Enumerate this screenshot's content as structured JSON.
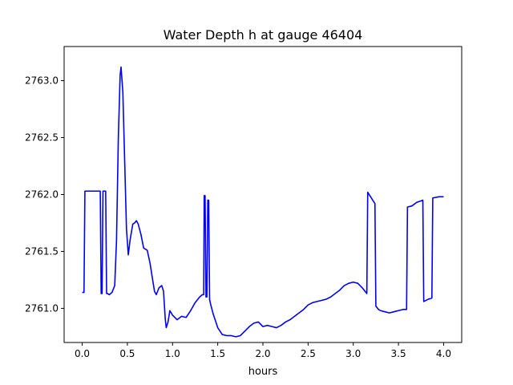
{
  "chart_data": {
    "type": "line",
    "title": "Water Depth h at gauge 46404",
    "xlabel": "hours",
    "ylabel": "",
    "xlim": [
      -0.2,
      4.2
    ],
    "ylim": [
      2760.7,
      2763.3
    ],
    "grid": false,
    "xticks": [
      {
        "value": 0.0,
        "label": "0.0"
      },
      {
        "value": 0.5,
        "label": "0.5"
      },
      {
        "value": 1.0,
        "label": "1.0"
      },
      {
        "value": 1.5,
        "label": "1.5"
      },
      {
        "value": 2.0,
        "label": "2.0"
      },
      {
        "value": 2.5,
        "label": "2.5"
      },
      {
        "value": 3.0,
        "label": "3.0"
      },
      {
        "value": 3.5,
        "label": "3.5"
      },
      {
        "value": 4.0,
        "label": "4.0"
      }
    ],
    "yticks": [
      {
        "value": 2761.0,
        "label": "2761.0"
      },
      {
        "value": 2761.5,
        "label": "2761.5"
      },
      {
        "value": 2762.0,
        "label": "2762.0"
      },
      {
        "value": 2762.5,
        "label": "2762.5"
      },
      {
        "value": 2763.0,
        "label": "2763.0"
      }
    ],
    "series": [
      {
        "color": "#0000ff",
        "x": [
          0.0,
          0.02,
          0.03,
          0.1,
          0.2,
          0.21,
          0.22,
          0.23,
          0.24,
          0.26,
          0.27,
          0.28,
          0.3,
          0.33,
          0.36,
          0.38,
          0.4,
          0.42,
          0.43,
          0.45,
          0.47,
          0.49,
          0.51,
          0.53,
          0.56,
          0.58,
          0.6,
          0.62,
          0.65,
          0.68,
          0.72,
          0.75,
          0.78,
          0.8,
          0.82,
          0.85,
          0.88,
          0.9,
          0.92,
          0.93,
          0.95,
          0.97,
          1.0,
          1.05,
          1.1,
          1.15,
          1.2,
          1.25,
          1.3,
          1.33,
          1.345,
          1.35,
          1.36,
          1.37,
          1.38,
          1.39,
          1.4,
          1.41,
          1.42,
          1.45,
          1.5,
          1.55,
          1.6,
          1.65,
          1.7,
          1.75,
          1.8,
          1.85,
          1.9,
          1.95,
          2.0,
          2.05,
          2.1,
          2.15,
          2.2,
          2.25,
          2.3,
          2.35,
          2.4,
          2.45,
          2.5,
          2.55,
          2.6,
          2.65,
          2.7,
          2.75,
          2.8,
          2.85,
          2.9,
          2.95,
          3.0,
          3.05,
          3.1,
          3.15,
          3.16,
          3.2,
          3.24,
          3.25,
          3.28,
          3.3,
          3.35,
          3.4,
          3.45,
          3.5,
          3.55,
          3.59,
          3.6,
          3.65,
          3.7,
          3.77,
          3.78,
          3.83,
          3.87,
          3.88,
          3.95,
          4.0
        ],
        "y": [
          2761.14,
          2761.14,
          2762.03,
          2762.03,
          2762.03,
          2761.13,
          2761.13,
          2762.03,
          2762.03,
          2762.03,
          2761.13,
          2761.13,
          2761.12,
          2761.14,
          2761.2,
          2761.6,
          2762.5,
          2763.05,
          2763.12,
          2762.9,
          2762.3,
          2761.7,
          2761.47,
          2761.6,
          2761.74,
          2761.75,
          2761.77,
          2761.74,
          2761.65,
          2761.53,
          2761.51,
          2761.4,
          2761.25,
          2761.15,
          2761.12,
          2761.18,
          2761.2,
          2761.15,
          2760.9,
          2760.83,
          2760.88,
          2760.98,
          2760.94,
          2760.9,
          2760.93,
          2760.92,
          2760.98,
          2761.05,
          2761.1,
          2761.12,
          2761.12,
          2761.99,
          2761.99,
          2761.1,
          2761.1,
          2761.95,
          2761.95,
          2761.08,
          2761.04,
          2760.95,
          2760.83,
          2760.77,
          2760.76,
          2760.76,
          2760.75,
          2760.76,
          2760.8,
          2760.84,
          2760.87,
          2760.88,
          2760.84,
          2760.85,
          2760.84,
          2760.83,
          2760.85,
          2760.88,
          2760.9,
          2760.93,
          2760.96,
          2760.99,
          2761.03,
          2761.05,
          2761.06,
          2761.07,
          2761.08,
          2761.1,
          2761.13,
          2761.16,
          2761.2,
          2761.22,
          2761.23,
          2761.22,
          2761.18,
          2761.13,
          2762.02,
          2761.97,
          2761.92,
          2761.02,
          2760.99,
          2760.98,
          2760.97,
          2760.96,
          2760.97,
          2760.98,
          2760.99,
          2760.99,
          2761.89,
          2761.9,
          2761.93,
          2761.95,
          2761.06,
          2761.08,
          2761.09,
          2761.97,
          2761.98,
          2761.98
        ]
      }
    ]
  }
}
